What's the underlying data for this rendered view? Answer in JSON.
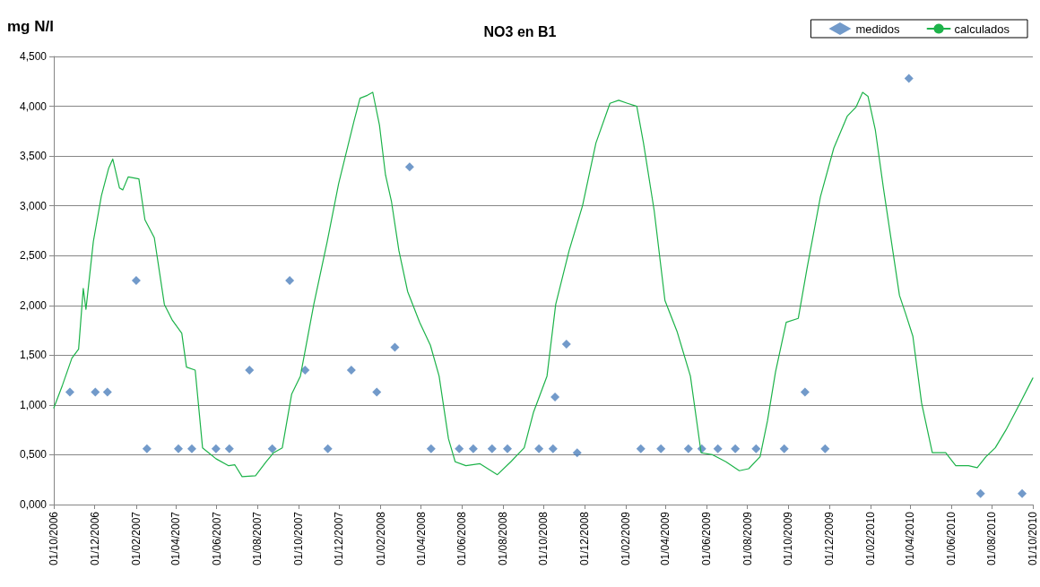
{
  "chart_data": {
    "type": "line",
    "title": "NO3 en B1",
    "ylabel": "mg N/l",
    "xlim": [
      "2006-10-01",
      "2010-10-01"
    ],
    "xticks": [
      {
        "value": "2006-10-01",
        "label": "01/10/2006"
      },
      {
        "value": "2006-12-01",
        "label": "01/12/2006"
      },
      {
        "value": "2007-02-01",
        "label": "01/02/2007"
      },
      {
        "value": "2007-04-01",
        "label": "01/04/2007"
      },
      {
        "value": "2007-06-01",
        "label": "01/06/2007"
      },
      {
        "value": "2007-08-01",
        "label": "01/08/2007"
      },
      {
        "value": "2007-10-01",
        "label": "01/10/2007"
      },
      {
        "value": "2007-12-01",
        "label": "01/12/2007"
      },
      {
        "value": "2008-02-01",
        "label": "01/02/2008"
      },
      {
        "value": "2008-04-01",
        "label": "01/04/2008"
      },
      {
        "value": "2008-06-01",
        "label": "01/06/2008"
      },
      {
        "value": "2008-08-01",
        "label": "01/08/2008"
      },
      {
        "value": "2008-10-01",
        "label": "01/10/2008"
      },
      {
        "value": "2008-12-01",
        "label": "01/12/2008"
      },
      {
        "value": "2009-02-01",
        "label": "01/02/2009"
      },
      {
        "value": "2009-04-01",
        "label": "01/04/2009"
      },
      {
        "value": "2009-06-01",
        "label": "01/06/2009"
      },
      {
        "value": "2009-08-01",
        "label": "01/08/2009"
      },
      {
        "value": "2009-10-01",
        "label": "01/10/2009"
      },
      {
        "value": "2009-12-01",
        "label": "01/12/2009"
      },
      {
        "value": "2010-02-01",
        "label": "01/02/2010"
      },
      {
        "value": "2010-04-01",
        "label": "01/04/2010"
      },
      {
        "value": "2010-06-01",
        "label": "01/06/2010"
      },
      {
        "value": "2010-08-01",
        "label": "01/08/2010"
      },
      {
        "value": "2010-10-01",
        "label": "01/10/2010"
      }
    ],
    "ylim": [
      0,
      4.5
    ],
    "yticks": [
      {
        "value": 0,
        "label": "0,000"
      },
      {
        "value": 0.5,
        "label": "0,500"
      },
      {
        "value": 1,
        "label": "1,000"
      },
      {
        "value": 1.5,
        "label": "1,500"
      },
      {
        "value": 2,
        "label": "2,000"
      },
      {
        "value": 2.5,
        "label": "2,500"
      },
      {
        "value": 3,
        "label": "3,000"
      },
      {
        "value": 3.5,
        "label": "3,500"
      },
      {
        "value": 4,
        "label": "4,000"
      },
      {
        "value": 4.5,
        "label": "4,500"
      }
    ],
    "grid": "y",
    "legend": "top right",
    "series": [
      {
        "name": "medidos",
        "type": "scatter",
        "marker": "diamond",
        "color": "#4f81bd",
        "x": [
          "2006-10-25",
          "2006-12-02",
          "2006-12-20",
          "2007-02-01",
          "2007-02-17",
          "2007-04-05",
          "2007-04-25",
          "2007-05-31",
          "2007-06-20",
          "2007-07-20",
          "2007-08-23",
          "2007-09-18",
          "2007-10-11",
          "2007-11-14",
          "2007-12-19",
          "2008-01-26",
          "2008-02-22",
          "2008-03-15",
          "2008-04-16",
          "2008-05-28",
          "2008-06-18",
          "2008-07-16",
          "2008-08-08",
          "2008-09-24",
          "2008-10-15",
          "2008-10-18",
          "2008-11-04",
          "2008-11-20",
          "2009-02-23",
          "2009-03-25",
          "2009-05-05",
          "2009-05-25",
          "2009-06-18",
          "2009-07-14",
          "2009-08-14",
          "2009-09-25",
          "2009-10-26",
          "2009-11-25",
          "2010-03-30",
          "2010-07-15",
          "2010-09-15"
        ],
        "values": [
          1.13,
          1.13,
          1.13,
          2.25,
          0.56,
          0.56,
          0.56,
          0.56,
          0.56,
          1.35,
          0.56,
          2.25,
          1.35,
          0.56,
          1.35,
          1.13,
          1.58,
          3.39,
          0.56,
          0.56,
          0.56,
          0.56,
          0.56,
          0.56,
          0.56,
          1.08,
          1.61,
          0.52,
          0.56,
          0.56,
          0.56,
          0.56,
          0.56,
          0.56,
          0.56,
          0.56,
          1.13,
          0.56,
          4.28,
          0.11,
          0.11
        ]
      },
      {
        "name": "calculados",
        "marker": "none",
        "line_style": "solid",
        "color": "#1db34a",
        "x": [
          "2006-10-01",
          "2006-10-14",
          "2006-10-28",
          "2006-11-07",
          "2006-11-14",
          "2006-11-18",
          "2006-11-29",
          "2006-12-11",
          "2006-12-22",
          "2006-12-28",
          "2007-01-07",
          "2007-01-12",
          "2007-01-20",
          "2007-02-05",
          "2007-02-14",
          "2007-02-28",
          "2007-03-15",
          "2007-03-27",
          "2007-04-10",
          "2007-04-17",
          "2007-04-30",
          "2007-05-11",
          "2007-05-31",
          "2007-06-19",
          "2007-06-28",
          "2007-07-09",
          "2007-07-29",
          "2007-08-14",
          "2007-08-25",
          "2007-09-07",
          "2007-09-21",
          "2007-10-04",
          "2007-10-24",
          "2007-11-13",
          "2007-11-30",
          "2007-12-23",
          "2008-01-01",
          "2008-01-12",
          "2008-01-20",
          "2008-01-30",
          "2008-02-08",
          "2008-02-17",
          "2008-02-28",
          "2008-03-12",
          "2008-03-30",
          "2008-04-15",
          "2008-04-28",
          "2008-05-12",
          "2008-05-22",
          "2008-06-07",
          "2008-06-28",
          "2008-07-24",
          "2008-08-13",
          "2008-09-02",
          "2008-09-16",
          "2008-10-06",
          "2008-10-19",
          "2008-11-08",
          "2008-11-28",
          "2008-12-18",
          "2009-01-08",
          "2009-01-21",
          "2009-02-03",
          "2009-02-17",
          "2009-02-27",
          "2009-03-15",
          "2009-03-31",
          "2009-04-18",
          "2009-05-08",
          "2009-05-24",
          "2009-06-10",
          "2009-06-30",
          "2009-07-20",
          "2009-08-03",
          "2009-08-20",
          "2009-08-31",
          "2009-09-12",
          "2009-09-28",
          "2009-10-16",
          "2009-10-29",
          "2009-11-18",
          "2009-12-08",
          "2009-12-28",
          "2010-01-10",
          "2010-01-20",
          "2010-01-28",
          "2010-02-08",
          "2010-02-20",
          "2010-03-02",
          "2010-03-16",
          "2010-03-25",
          "2010-04-05",
          "2010-04-18",
          "2010-05-04",
          "2010-05-24",
          "2010-06-08",
          "2010-06-27",
          "2010-07-10",
          "2010-07-23",
          "2010-08-06",
          "2010-08-22",
          "2010-09-12",
          "2010-10-01"
        ],
        "values": [
          0.97,
          1.2,
          1.47,
          1.56,
          2.17,
          1.96,
          2.64,
          3.1,
          3.38,
          3.47,
          3.18,
          3.16,
          3.29,
          3.27,
          2.86,
          2.68,
          2.01,
          1.85,
          1.72,
          1.38,
          1.35,
          0.57,
          0.46,
          0.39,
          0.4,
          0.28,
          0.29,
          0.43,
          0.52,
          0.57,
          1.11,
          1.29,
          2.01,
          2.64,
          3.22,
          3.85,
          4.08,
          4.11,
          4.14,
          3.81,
          3.31,
          3.04,
          2.55,
          2.14,
          1.83,
          1.6,
          1.29,
          0.66,
          0.43,
          0.39,
          0.41,
          0.3,
          0.43,
          0.57,
          0.93,
          1.29,
          2.01,
          2.55,
          3.0,
          3.63,
          4.03,
          4.06,
          4.03,
          4.0,
          3.63,
          2.95,
          2.05,
          1.74,
          1.29,
          0.52,
          0.5,
          0.43,
          0.34,
          0.36,
          0.48,
          0.84,
          1.33,
          1.83,
          1.87,
          2.37,
          3.09,
          3.58,
          3.9,
          3.99,
          4.14,
          4.1,
          3.76,
          3.18,
          2.73,
          2.1,
          1.92,
          1.69,
          1.02,
          0.52,
          0.52,
          0.39,
          0.39,
          0.37,
          0.48,
          0.57,
          0.75,
          1.02,
          1.27
        ]
      }
    ]
  }
}
